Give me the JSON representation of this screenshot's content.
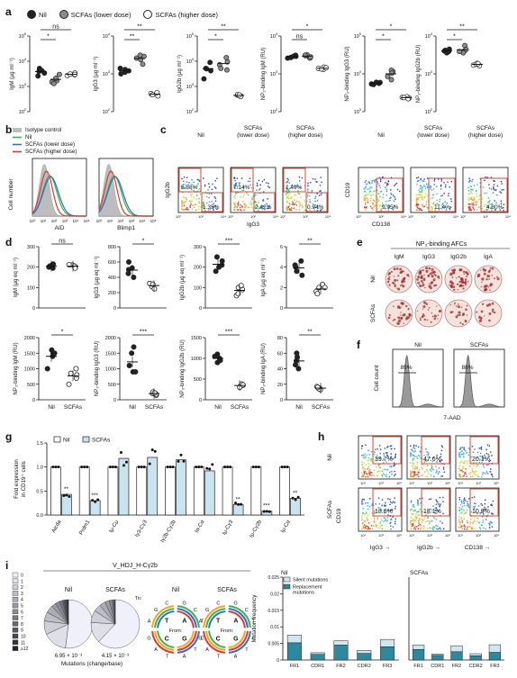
{
  "panel_labels": [
    "a",
    "b",
    "c",
    "d",
    "e",
    "f",
    "g",
    "h",
    "i"
  ],
  "legend_a": {
    "nil": "Nil",
    "lower": "SCFAs (lower dose)",
    "higher": "SCFAs (higher dose)"
  },
  "colors": {
    "nil": "#222222",
    "lower": "#8c8c8c",
    "higher": "#ffffff",
    "flow_nil": "#3cb44b",
    "flow_lower": "#2b6cd6",
    "flow_higher": "#e0382c",
    "iso": "#bdbdbd",
    "gate": "#e2462f",
    "bar_nil": "#ffffff",
    "bar_scfa": "#c9e3ef",
    "mut_silent": "#cfe7f1",
    "mut_repl": "#2b8a9e"
  },
  "chart_data": [
    {
      "type": "scatter",
      "title": "",
      "ylabel": "IgM (µg ml⁻¹)",
      "ylim": [
        100,
        100000
      ],
      "log": true,
      "groups": [
        "Nil",
        "SCFAs (lower dose)",
        "SCFAs (higher dose)"
      ],
      "values": [
        [
          4000,
          2600,
          3400,
          5200,
          4200
        ],
        [
          1700,
          1500,
          2100,
          3000,
          1300
        ],
        [
          2900,
          3400,
          2700,
          3100,
          3000
        ]
      ],
      "sig": [
        {
          "a": 0,
          "b": 1,
          "text": "*"
        },
        {
          "a": 0,
          "b": 2,
          "text": "ns"
        }
      ]
    },
    {
      "type": "scatter",
      "title": "",
      "ylabel": "IgG3 (µg ml⁻¹)",
      "ylim": [
        100,
        10000
      ],
      "log": true,
      "groups": [
        "Nil",
        "SCFAs (lower dose)",
        "SCFAs (higher dose)"
      ],
      "values": [
        [
          1100,
          1000,
          1300,
          1400,
          1200
        ],
        [
          1800,
          2900,
          2600,
          3100,
          2400
        ],
        [
          290,
          260,
          320,
          300,
          280
        ]
      ],
      "sig": [
        {
          "a": 0,
          "b": 1,
          "text": "**"
        },
        {
          "a": 0,
          "b": 2,
          "text": "**"
        }
      ]
    },
    {
      "type": "scatter",
      "title": "",
      "ylabel": "IgG2b (µg ml⁻¹)",
      "ylim": [
        100,
        100000
      ],
      "log": true,
      "groups": [
        "Nil",
        "SCFAs (lower dose)",
        "SCFAs (higher dose)"
      ],
      "values": [
        [
          4200,
          2000,
          5200,
          9000,
          5000
        ],
        [
          7200,
          4500,
          14000,
          5200,
          9500
        ],
        [
          450,
          420,
          480,
          400,
          460
        ]
      ],
      "sig": [
        {
          "a": 0,
          "b": 1,
          "text": "*"
        },
        {
          "a": 0,
          "b": 2,
          "text": "**"
        }
      ]
    },
    {
      "type": "scatter",
      "title": "",
      "ylabel": "NP₃-binding IgM (RU)",
      "ylim": [
        100,
        10000
      ],
      "log": true,
      "groups": [
        "Nil",
        "SCFAs (lower dose)",
        "SCFAs (higher dose)"
      ],
      "values": [
        [
          2600,
          2900,
          3100,
          2700,
          2900
        ],
        [
          3000,
          2600,
          3200,
          2800,
          3100
        ],
        [
          1300,
          1500,
          1400,
          1350,
          1450
        ]
      ],
      "sig": [
        {
          "a": 0,
          "b": 1,
          "text": "ns"
        },
        {
          "a": 0,
          "b": 2,
          "text": "*"
        }
      ]
    },
    {
      "type": "scatter",
      "title": "",
      "ylabel": "NP₃-binding IgG3 (RU)",
      "ylim": [
        1000,
        100000
      ],
      "log": true,
      "groups": [
        "Nil",
        "SCFAs (lower dose)",
        "SCFAs (higher dose)"
      ],
      "values": [
        [
          5200,
          5600,
          6000,
          5400,
          5900
        ],
        [
          7000,
          11500,
          8500,
          12500,
          10500
        ],
        [
          2300,
          2500,
          2200,
          2400,
          2350
        ]
      ],
      "sig": [
        {
          "a": 0,
          "b": 1,
          "text": "*"
        },
        {
          "a": 0,
          "b": 2,
          "text": "*"
        }
      ]
    },
    {
      "type": "scatter",
      "title": "",
      "ylabel": "NP₃-binding IgG2b (RU)",
      "ylim": [
        100,
        10000
      ],
      "log": true,
      "groups": [
        "Nil",
        "SCFAs (lower dose)",
        "SCFAs (higher dose)"
      ],
      "values": [
        [
          3600,
          4500,
          4000,
          3900,
          4200
        ],
        [
          4100,
          3600,
          5600,
          3900,
          4400
        ],
        [
          1700,
          1900,
          1800,
          1650,
          1850
        ]
      ],
      "sig": [
        {
          "a": 0,
          "b": 1,
          "text": "*"
        },
        {
          "a": 0,
          "b": 2,
          "text": "**"
        }
      ]
    }
  ],
  "panel_b": {
    "legend": [
      "Isotype control",
      "Nil",
      "SCFAs (lower dose)",
      "SCFAs (higher dose)"
    ],
    "ylabel": "Cell number",
    "xlabels": [
      "AID",
      "Blimp1"
    ],
    "ticks": [
      "10⁰",
      "10¹",
      "10²",
      "10³",
      "10⁴",
      "10⁵"
    ]
  },
  "panel_c": {
    "titles": [
      "Nil",
      "SCFAs\n(lower dose)",
      "SCFAs\n(higher dose)"
    ],
    "ylabel1": "IgG2b",
    "xlabel1": "IgG3",
    "ylabel2": "CD19",
    "xlabel2": "CD138",
    "g1": [
      {
        "top": "5.88%",
        "bottom": "1.35%"
      },
      {
        "top": "7.14%",
        "bottom": "2.42%"
      },
      {
        "top": "1.49%",
        "bottom": "0.94%"
      }
    ],
    "g2": [
      "9.95%",
      "11.4%",
      "4.80%"
    ]
  },
  "panel_d": {
    "xcats": [
      "Nil",
      "SCFAs"
    ],
    "plots": [
      {
        "ylabel": "IgM (µg eq ml⁻¹)",
        "ymax": 300,
        "ticks": [
          0,
          100,
          200,
          300
        ],
        "nil": [
          210,
          200,
          215,
          195,
          205
        ],
        "scfa": [
          200,
          210,
          205,
          195,
          212
        ],
        "sig": "ns"
      },
      {
        "ylabel": "IgG3 (µg eq ml⁻¹)",
        "ymax": 800,
        "ticks": [
          0,
          200,
          400,
          600,
          800
        ],
        "nil": [
          500,
          600,
          450,
          520,
          400
        ],
        "scfa": [
          300,
          280,
          320,
          250,
          310
        ],
        "sig": "*"
      },
      {
        "ylabel": "IgG2b (µg eq ml⁻¹)",
        "ymax": 300,
        "ticks": [
          0,
          100,
          200,
          300
        ],
        "nil": [
          200,
          230,
          250,
          180,
          210
        ],
        "scfa": [
          90,
          60,
          100,
          70,
          110
        ],
        "sig": "***"
      },
      {
        "ylabel": "IgA (µg eq ml⁻¹)",
        "ymax": 6,
        "ticks": [
          0,
          2,
          4,
          6
        ],
        "nil": [
          4,
          3.2,
          4.6,
          4.2,
          3.6
        ],
        "scfa": [
          2,
          1.6,
          2.3,
          1.4,
          2.0
        ],
        "sig": "**"
      },
      {
        "ylabel": "NP₃-binding IgM (RU)",
        "ymax": 2000,
        "ticks": [
          0,
          500,
          1000,
          1500,
          2000
        ],
        "nil": [
          1400,
          1500,
          1000,
          1500,
          1600
        ],
        "scfa": [
          1000,
          700,
          500,
          800,
          850
        ],
        "sig": "*"
      },
      {
        "ylabel": "NP₃-binding IgG3 (RU)",
        "ymax": 2000,
        "ticks": [
          0,
          500,
          1000,
          1500,
          2000
        ],
        "nil": [
          1100,
          900,
          1500,
          1700,
          900
        ],
        "scfa": [
          200,
          150,
          250,
          180,
          220
        ],
        "sig": "***"
      },
      {
        "ylabel": "NP₃-binding IgG2b (RU)",
        "ymax": 1500,
        "ticks": [
          0,
          500,
          1000,
          1500
        ],
        "nil": [
          1000,
          1100,
          950,
          900,
          1050
        ],
        "scfa": [
          350,
          330,
          380,
          300,
          360
        ],
        "sig": "***"
      },
      {
        "ylabel": "NP₃-binding IgA (RU)",
        "ymax": 80,
        "ticks": [
          0,
          20,
          40,
          60,
          80
        ],
        "nil": [
          50,
          55,
          45,
          60,
          40
        ],
        "scfa": [
          15,
          13,
          17,
          14,
          16
        ],
        "sig": "**"
      }
    ]
  },
  "panel_e": {
    "title": "NP₃-binding AFCs",
    "cols": [
      "IgM",
      "IgG3",
      "IgG2b",
      "IgA"
    ],
    "rows": [
      "Nil",
      "SCFAs"
    ]
  },
  "panel_f": {
    "titles": [
      "Nil",
      "SCFAs"
    ],
    "pcts": [
      "89%",
      "88%"
    ],
    "ylabel": "Cell count",
    "xlabel": "7-AAD"
  },
  "panel_g": {
    "legend": [
      "Nil",
      "SCFAs"
    ],
    "ylabel": "Fold expression\nin CD19⁺ cells",
    "ticks": [
      0,
      0.5,
      1.0,
      1.5
    ],
    "genes": [
      "Aicda",
      "Prdm1",
      "Iμ-Cμ",
      "Iγ3-Cγ3",
      "Iγ2b-Cγ2b",
      "Iα-Cα",
      "Iμ-Cγ3",
      "Iμ-Cγ2b",
      "Iμ-Cα"
    ],
    "nil": [
      1,
      1,
      1,
      1,
      1,
      1,
      1,
      1,
      1
    ],
    "scfa": [
      0.43,
      0.3,
      1.18,
      1.2,
      1.15,
      0.92,
      0.22,
      0.08,
      0.35
    ],
    "sig": [
      "**",
      "***",
      "",
      "",
      "",
      "",
      "**",
      "***",
      "**"
    ]
  },
  "panel_h": {
    "rows": [
      "Nil",
      "SCFAs"
    ],
    "xlabels": [
      "IgG3",
      "IgG2b",
      "CD138"
    ],
    "ylabel": "CD19",
    "pcts": [
      [
        "39.7%",
        "47.6%",
        "20.1%"
      ],
      [
        "18.6%",
        "18.1%",
        "10.9%"
      ]
    ]
  },
  "panel_i": {
    "title": "V_HDJ_H-Cγ2b",
    "pie_titles": [
      "Nil",
      "SCFAs"
    ],
    "pie_legend": [
      "0",
      "1",
      "2",
      "3",
      "4",
      "5",
      "6",
      "7",
      "8",
      "9",
      "10",
      "11",
      "≥12"
    ],
    "rates": [
      "6.95 × 10⁻³",
      "4.15 × 10⁻³"
    ],
    "xlabel": "Mutations (change/base)",
    "wheel_titles": [
      "Nil",
      "SCFAs"
    ],
    "to_label": "To:",
    "from_label": "From:",
    "bars_title_left": "Nil",
    "bars_title_right": "SCFAs",
    "bars_legend": [
      "Silent mutations",
      "Replacement\nmutations"
    ],
    "ylabel": "Mutation frequency",
    "regions": [
      "FR1",
      "CDR1",
      "FR2",
      "CDR2",
      "FR3"
    ],
    "yticks": [
      0,
      0.005,
      0.01,
      0.015,
      0.02,
      0.025
    ],
    "nil_repl": [
      0.0052,
      0.0017,
      0.0045,
      0.002,
      0.004
    ],
    "nil_silent": [
      0.0023,
      0.0005,
      0.0013,
      0.0009,
      0.0022
    ],
    "scfa_repl": [
      0.0032,
      0.0014,
      0.0025,
      0.0013,
      0.0023
    ],
    "scfa_silent": [
      0.0013,
      0.0004,
      0.0018,
      0.0006,
      0.0023
    ]
  }
}
